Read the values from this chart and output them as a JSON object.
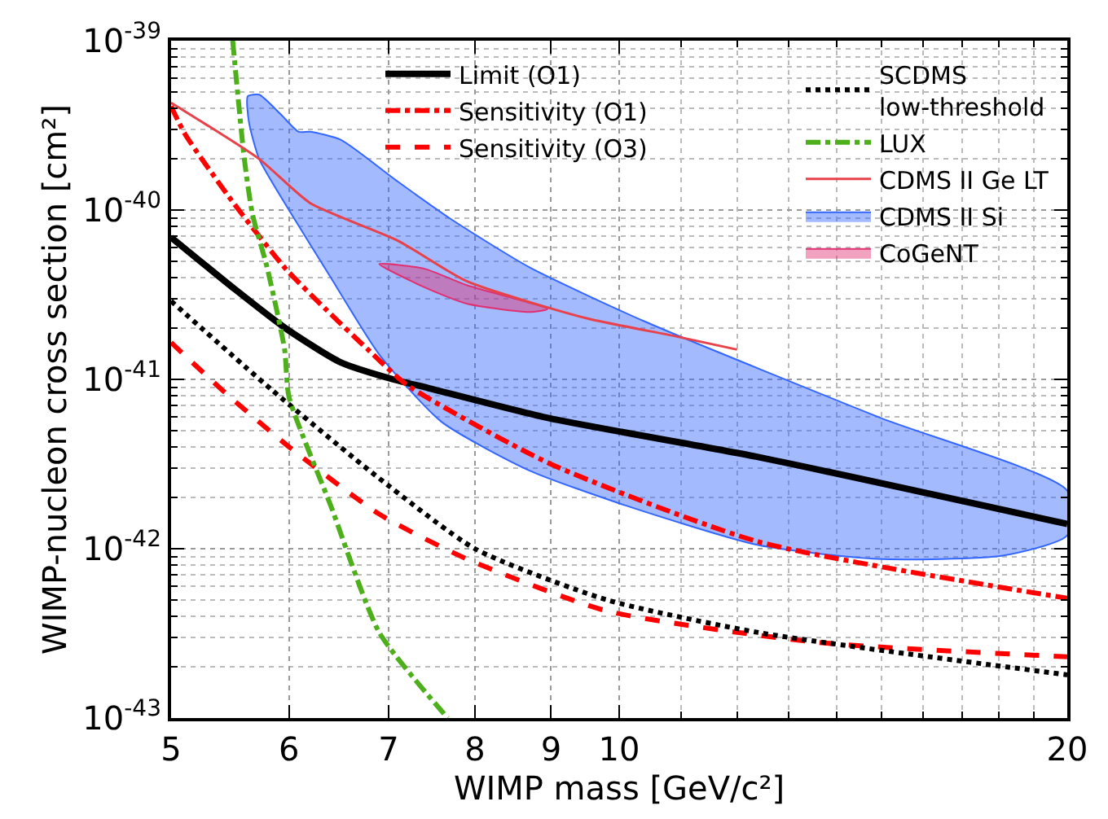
{
  "chart_data": {
    "type": "line",
    "xlabel": "WIMP mass [GeV/c²]",
    "ylabel": "WIMP-nucleon cross section [cm²]",
    "log": "xy",
    "grid": true,
    "legend": "top right",
    "xlim": [
      5,
      20
    ],
    "xticks": [
      5,
      6,
      7,
      8,
      9,
      10,
      20
    ],
    "ylim": [
      1e-43,
      1e-39
    ],
    "yticks": [
      {
        "value": 1e-43,
        "label": "10$^{-43}$"
      },
      {
        "value": 1e-42,
        "label": "10$^{-42}$"
      },
      {
        "value": 1e-41,
        "label": "10$^{-41}$"
      },
      {
        "value": 1e-40,
        "label": "10$^{-40}$"
      },
      {
        "value": 1e-39,
        "label": "10$^{-39}$"
      }
    ],
    "series": [
      {
        "name": "Limit (O1)",
        "color": "#000000",
        "line_style": "solid",
        "x": [
          5,
          5.52,
          5.97,
          6.5,
          7.05,
          7.44,
          8.97,
          12.36,
          20
        ],
        "values": [
          6.9e-41,
          3.4e-41,
          2e-41,
          1.26e-41,
          1e-41,
          8.9e-42,
          5.9e-42,
          3.5e-42,
          1.4e-42
        ]
      },
      {
        "name": "Sensitivity (O1)",
        "color": "#ff0000",
        "line_style": "dashdot",
        "x": [
          5,
          5.11,
          5.52,
          5.97,
          6.35,
          6.78,
          7.2,
          8.97,
          12.4,
          20
        ],
        "values": [
          4.1e-40,
          2.8e-40,
          1.07e-40,
          4.5e-41,
          2.6e-41,
          1.5e-41,
          9.3e-42,
          3.2e-42,
          1.1e-42,
          5.1e-43
        ]
      },
      {
        "name": "Sensitivity (O3)",
        "color": "#ff0000",
        "line_style": "dashed",
        "x": [
          5,
          5.44,
          6,
          6.9,
          7.9,
          9.8,
          13.6,
          20
        ],
        "values": [
          1.65e-41,
          8.3e-42,
          4e-42,
          1.6e-42,
          8.7e-43,
          4.3e-43,
          2.8e-43,
          2.3e-43
        ]
      },
      {
        "name": "SCDMS\nlow-threshold",
        "color": "#000000",
        "line_style": "dotted",
        "x": [
          5,
          5.84,
          6.9,
          8.0,
          9.8,
          12.4,
          20
        ],
        "values": [
          2.9e-41,
          8.7e-42,
          2.6e-42,
          1e-42,
          5e-43,
          3.2e-43,
          1.8e-43
        ]
      },
      {
        "name": "LUX",
        "color": "#4daf1a",
        "line_style": "dashdot",
        "x": [
          5.5,
          5.6,
          5.67,
          5.8,
          5.96,
          6.0,
          6.4,
          6.9,
          7.67
        ],
        "values": [
          1e-39,
          2e-40,
          9.5e-41,
          4.6e-41,
          1.5e-41,
          7.9e-42,
          1.8e-42,
          3.2e-43,
          1e-43
        ]
      },
      {
        "name": "CDMS II Ge LT",
        "color": "#e8414a",
        "line_style": "solid",
        "x": [
          5,
          5.73,
          6.2,
          7.1,
          7.9,
          9.5,
          10.9,
          12.0
        ],
        "values": [
          4.3e-40,
          2e-40,
          1.1e-40,
          6.6e-41,
          3.8e-41,
          2.3e-41,
          1.8e-41,
          1.5e-41
        ]
      },
      {
        "name": "CDMS II Si",
        "type": "area",
        "color": "#3366ff",
        "x": [
          5.63,
          5.73,
          5.92,
          6.09,
          6.2,
          6.5,
          7.08,
          7.7,
          8.7,
          10.4,
          15.0,
          20,
          20,
          18.1,
          14.9,
          12.4,
          10.1,
          8.7,
          7.6,
          6.9,
          6.4,
          6.0,
          5.73,
          5.64,
          5.63
        ],
        "values": [
          4.7e-40,
          4.8e-40,
          3.7e-40,
          2.9e-40,
          2.9e-40,
          2.6e-40,
          1.5e-40,
          8.9e-41,
          4.6e-41,
          2.2e-41,
          5.9e-42,
          2.2e-42,
          1.2e-42,
          9.1e-43,
          8.7e-43,
          1.05e-42,
          1.8e-42,
          2.9e-42,
          5.6e-42,
          1.4e-41,
          4e-41,
          1e-40,
          2e-40,
          3.3e-40,
          4.7e-40
        ]
      },
      {
        "name": "CoGeNT",
        "type": "area",
        "color": "#e0306f",
        "x": [
          6.9,
          7.4,
          7.9,
          8.95,
          8.7,
          7.9,
          7.4,
          6.9
        ],
        "values": [
          4.8e-41,
          4.5e-41,
          3.6e-41,
          2.6e-41,
          2.5e-41,
          2.8e-41,
          3.5e-41,
          4.8e-41
        ]
      }
    ]
  }
}
